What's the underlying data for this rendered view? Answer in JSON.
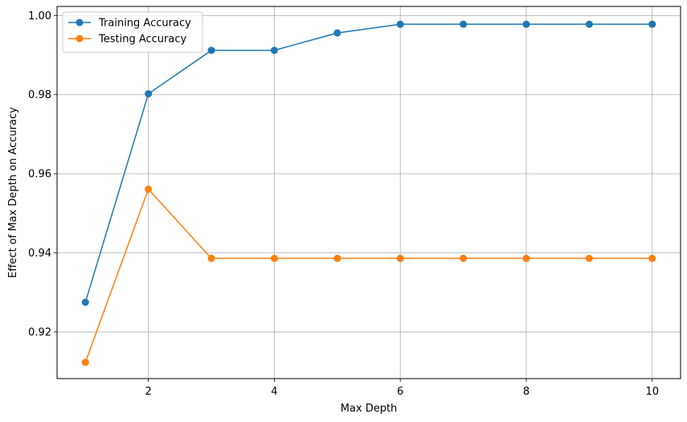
{
  "chart_data": {
    "type": "line",
    "title": "",
    "xlabel": "Max Depth",
    "ylabel": "Effect of Max Depth on Accuracy",
    "x": [
      1,
      2,
      3,
      4,
      5,
      6,
      7,
      8,
      9,
      10
    ],
    "xlim": [
      0.55,
      10.45
    ],
    "ylim": [
      0.9082,
      1.0023
    ],
    "xticks": [
      2,
      4,
      6,
      8,
      10
    ],
    "yticks": [
      0.92,
      0.94,
      0.96,
      0.98,
      1.0
    ],
    "ytick_labels": [
      "0.92",
      "0.94",
      "0.96",
      "0.98",
      "1.00"
    ],
    "grid": true,
    "legend_position": "top-left",
    "series": [
      {
        "name": "Training Accuracy",
        "color": "#1f77b4",
        "marker": "circle",
        "values": [
          0.9275,
          0.9802,
          0.9912,
          0.9912,
          0.9956,
          0.9978,
          0.9978,
          0.9978,
          0.9978,
          0.9978
        ]
      },
      {
        "name": "Testing Accuracy",
        "color": "#ff7f0e",
        "marker": "circle",
        "values": [
          0.9123,
          0.9561,
          0.9386,
          0.9386,
          0.9386,
          0.9386,
          0.9386,
          0.9386,
          0.9386,
          0.9386
        ]
      }
    ]
  }
}
